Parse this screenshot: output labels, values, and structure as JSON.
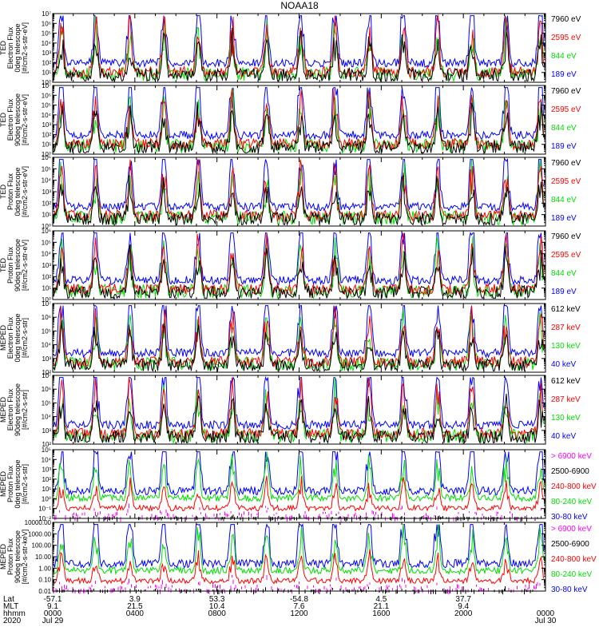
{
  "title": "NOAA18",
  "chart_data": [
    {
      "type": "line",
      "ylabel": [
        "TED",
        "Electron Flux",
        "0deg telescope",
        "[#/cm2-s-str-eV]"
      ],
      "yscale": "log",
      "ylim_exp": [
        0,
        7
      ],
      "y_ticks": [
        "10⁰",
        "10¹",
        "10²",
        "10³",
        "10⁴",
        "10⁵",
        "10⁶",
        "10⁷"
      ],
      "series": [
        {
          "name": "7960 eV",
          "color": "#000000"
        },
        {
          "name": "2595 eV",
          "color": "#ff0000"
        },
        {
          "name": "844 eV",
          "color": "#00dd00"
        },
        {
          "name": "189 eV",
          "color": "#0000ff"
        }
      ]
    },
    {
      "type": "line",
      "ylabel": [
        "TED",
        "Electron Flux",
        "90deg telescope",
        "[#/cm2-s-str-eV]"
      ],
      "yscale": "log",
      "ylim_exp": [
        0,
        7
      ],
      "y_ticks": [
        "10⁰",
        "10¹",
        "10²",
        "10³",
        "10⁴",
        "10⁵",
        "10⁶",
        "10⁷"
      ],
      "series": [
        {
          "name": "7960 eV",
          "color": "#000000"
        },
        {
          "name": "2595 eV",
          "color": "#ff0000"
        },
        {
          "name": "844 eV",
          "color": "#00dd00"
        },
        {
          "name": "189 eV",
          "color": "#0000ff"
        }
      ]
    },
    {
      "type": "line",
      "ylabel": [
        "TED",
        "Proton Flux",
        "0deg telescope",
        "[#/cm2-s-str-eV]"
      ],
      "yscale": "log",
      "ylim_exp": [
        0,
        6
      ],
      "y_ticks": [
        "10⁰",
        "10¹",
        "10²",
        "10³",
        "10⁴",
        "10⁵",
        "10⁶"
      ],
      "series": [
        {
          "name": "7960 eV",
          "color": "#000000"
        },
        {
          "name": "2595 eV",
          "color": "#ff0000"
        },
        {
          "name": "844 eV",
          "color": "#00dd00"
        },
        {
          "name": "189 eV",
          "color": "#0000ff"
        }
      ]
    },
    {
      "type": "line",
      "ylabel": [
        "TED",
        "Proton Flux",
        "90deg telescope",
        "[#/cm2-s-str-eV]"
      ],
      "yscale": "log",
      "ylim_exp": [
        0,
        6
      ],
      "y_ticks": [
        "10⁰",
        "10¹",
        "10²",
        "10³",
        "10⁴",
        "10⁵",
        "10⁶"
      ],
      "series": [
        {
          "name": "7960 eV",
          "color": "#000000"
        },
        {
          "name": "2595 eV",
          "color": "#ff0000"
        },
        {
          "name": "844 eV",
          "color": "#00dd00"
        },
        {
          "name": "189 eV",
          "color": "#0000ff"
        }
      ]
    },
    {
      "type": "line",
      "ylabel": [
        "MEPED",
        "Electron Flux",
        "0deg telescope",
        "[#/cm2-s-str]"
      ],
      "yscale": "log",
      "ylim_exp": [
        2,
        7
      ],
      "y_ticks": [
        "10²",
        "10³",
        "10⁴",
        "10⁵",
        "10⁶",
        "10⁷"
      ],
      "series": [
        {
          "name": "612 keV",
          "color": "#000000"
        },
        {
          "name": "287 keV",
          "color": "#ff0000"
        },
        {
          "name": "130 keV",
          "color": "#00dd00"
        },
        {
          "name": "40 keV",
          "color": "#0000ff"
        }
      ]
    },
    {
      "type": "line",
      "ylabel": [
        "MEPED",
        "Electron Flux",
        "90deg telescope",
        "[#/cm2-s-str]"
      ],
      "yscale": "log",
      "ylim_exp": [
        2,
        7
      ],
      "y_ticks": [
        "10²",
        "10³",
        "10⁴",
        "10⁵",
        "10⁶",
        "10⁷"
      ],
      "series": [
        {
          "name": "612 keV",
          "color": "#000000"
        },
        {
          "name": "287 keV",
          "color": "#ff0000"
        },
        {
          "name": "130 keV",
          "color": "#00dd00"
        },
        {
          "name": "40 keV",
          "color": "#0000ff"
        }
      ]
    },
    {
      "type": "line",
      "ylabel": [
        "MEPED",
        "Proton Flux",
        "0deg telescope",
        "[#/cm2-s-str]"
      ],
      "yscale": "log",
      "ylim_exp": [
        -2,
        5
      ],
      "y_ticks": [
        "10⁻²",
        "10⁻¹",
        "10⁰",
        "10¹",
        "10²",
        "10³",
        "10⁴",
        "10⁵"
      ],
      "series": [
        {
          "name": "> 6900 keV",
          "color": "#ff00ff"
        },
        {
          "name": "2500-6900",
          "color": "#000000"
        },
        {
          "name": "240-800 keV",
          "color": "#ff0000"
        },
        {
          "name": "80-240 keV",
          "color": "#00dd00"
        },
        {
          "name": "30-80 keV",
          "color": "#0000ff"
        }
      ]
    },
    {
      "type": "line",
      "ylabel": [
        "MEPED",
        "Proton Flux",
        "90deg telescope",
        "[#/cm2-s-str-keV]"
      ],
      "yscale": "log",
      "ylim_exp": [
        -2,
        4
      ],
      "y_ticks": [
        "0.01",
        "0.10",
        "1.00",
        "10.00",
        "100.00",
        "1000.00",
        "10000.00"
      ],
      "series": [
        {
          "name": "> 6900 keV",
          "color": "#ff00ff"
        },
        {
          "name": "2500-6900",
          "color": "#000000"
        },
        {
          "name": "240-800 keV",
          "color": "#ff0000"
        },
        {
          "name": "80-240 keV",
          "color": "#00dd00"
        },
        {
          "name": "30-80 keV",
          "color": "#0000ff"
        }
      ]
    }
  ],
  "xaxis": {
    "row_labels": [
      "Lat",
      "MLT",
      "hhmm",
      "2020"
    ],
    "columns": [
      {
        "lat": "-57.1",
        "mlt": "9.1",
        "hhmm": "0000",
        "extra": "Jul 29"
      },
      {
        "lat": "3.9",
        "mlt": "21.5",
        "hhmm": "0400",
        "extra": ""
      },
      {
        "lat": "53.3",
        "mlt": "10.4",
        "hhmm": "0800",
        "extra": ""
      },
      {
        "lat": "-54.8",
        "mlt": "7.6",
        "hhmm": "1200",
        "extra": ""
      },
      {
        "lat": "4.5",
        "mlt": "21.1",
        "hhmm": "1600",
        "extra": ""
      },
      {
        "lat": "37.7",
        "mlt": "9.4",
        "hhmm": "2000",
        "extra": ""
      },
      {
        "lat": "",
        "mlt": "",
        "hhmm": "0000",
        "extra": "Jul 30"
      }
    ]
  }
}
